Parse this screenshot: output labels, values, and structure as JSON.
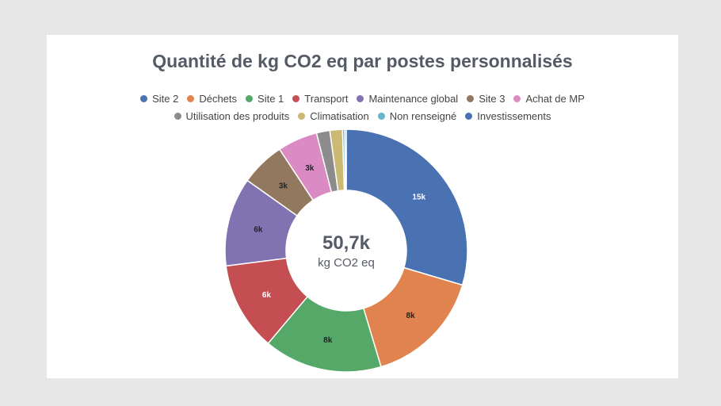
{
  "chart_data": {
    "type": "pie",
    "title": "Quantité de kg CO2 eq par postes personnalisés",
    "center_value": "50,7k",
    "center_unit": "kg CO2 eq",
    "series": [
      {
        "name": "Site 2",
        "value": 15,
        "label": "15k",
        "color": "#4a72b2",
        "label_color": "#ffffff"
      },
      {
        "name": "Déchets",
        "value": 8,
        "label": "8k",
        "color": "#e0834f",
        "label_color": "#222222"
      },
      {
        "name": "Site 1",
        "value": 8,
        "label": "8k",
        "color": "#55a868",
        "label_color": "#222222"
      },
      {
        "name": "Transport",
        "value": 6,
        "label": "6k",
        "color": "#c44e52",
        "label_color": "#ffffff"
      },
      {
        "name": "Maintenance global",
        "value": 6,
        "label": "6k",
        "color": "#8172b2",
        "label_color": "#222222"
      },
      {
        "name": "Site 3",
        "value": 3,
        "label": "3k",
        "color": "#937860",
        "label_color": "#222222"
      },
      {
        "name": "Achat de MP",
        "value": 2.7,
        "label": "3k",
        "color": "#da8bc3",
        "label_color": "#222222"
      },
      {
        "name": "Utilisation des produits",
        "value": 0.9,
        "label": "",
        "color": "#8c8c8c",
        "label_color": "#222222"
      },
      {
        "name": "Climatisation",
        "value": 0.85,
        "label": "",
        "color": "#ccb974",
        "label_color": "#222222"
      },
      {
        "name": "Non renseigné",
        "value": 0.15,
        "label": "",
        "color": "#64b5cd",
        "label_color": "#222222"
      },
      {
        "name": "Investissements",
        "value": 0.1,
        "label": "",
        "color": "#4a72b2",
        "label_color": "#222222"
      }
    ],
    "legend_position": "top",
    "legend_rows": [
      [
        0,
        1,
        2,
        3,
        4,
        5,
        6
      ],
      [
        7,
        8,
        9,
        10
      ]
    ]
  }
}
